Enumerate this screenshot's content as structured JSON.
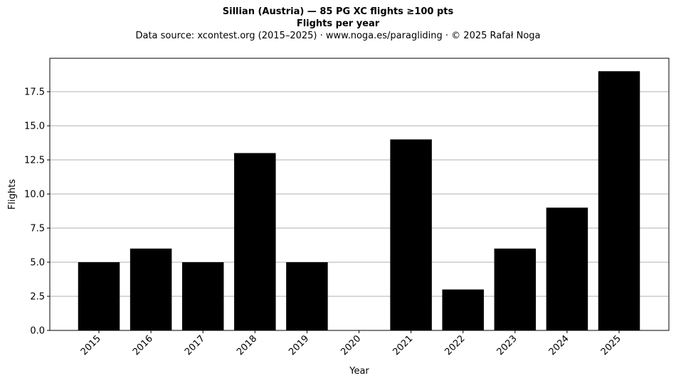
{
  "header": {
    "title_line1": "Sillian (Austria)  —  85 PG XC flights ≥100 pts",
    "title_line2": "Flights per year",
    "source_line": "Data source: xcontest.org (2015–2025)  ·  www.noga.es/paragliding  ·  © 2025 Rafał Noga"
  },
  "chart_data": {
    "type": "bar",
    "title": "Sillian (Austria)  —  85 PG XC flights ≥100 pts",
    "subtitle": "Flights per year",
    "xlabel": "Year",
    "ylabel": "Flights",
    "categories": [
      "2015",
      "2016",
      "2017",
      "2018",
      "2019",
      "2020",
      "2021",
      "2022",
      "2023",
      "2024",
      "2025"
    ],
    "values": [
      5,
      6,
      5,
      13,
      5,
      0,
      14,
      3,
      6,
      9,
      19
    ],
    "ylim": [
      0,
      19.95
    ],
    "yticks": [
      "0.0",
      "2.5",
      "5.0",
      "7.5",
      "10.0",
      "12.5",
      "15.0",
      "17.5"
    ],
    "grid": "horizontal",
    "bar_color": "#000000",
    "grid_color": "#b0b0b0"
  }
}
